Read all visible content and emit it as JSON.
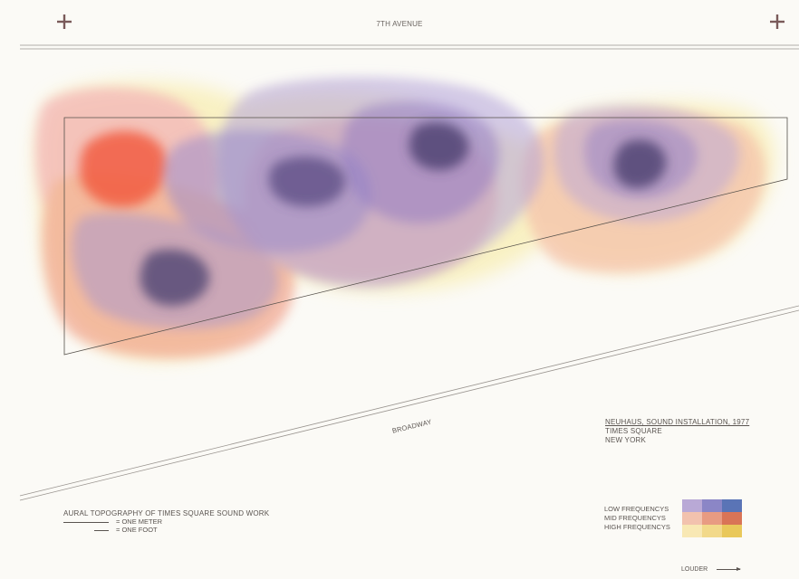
{
  "streets": {
    "top": "7TH AVENUE",
    "diagonal": "BROADWAY"
  },
  "title": {
    "line1": "NEUHAUS, SOUND INSTALLATION, 1977",
    "line2": "TIMES SQUARE",
    "line3": "NEW YORK"
  },
  "caption": "AURAL TOPOGRAPHY OF TIMES SQUARE SOUND WORK",
  "scale": {
    "meter": "= ONE METER",
    "foot": "= ONE FOOT"
  },
  "legend": {
    "rows": [
      {
        "label": "LOW FREQUENCYS",
        "colors": [
          "#b9a9d6",
          "#8b86c6",
          "#5a74b6"
        ]
      },
      {
        "label": "MID FREQUENCYS",
        "colors": [
          "#f2c2ae",
          "#e89b82",
          "#d97456"
        ]
      },
      {
        "label": "HIGH FREQUENCYS",
        "colors": [
          "#f8e8b4",
          "#f2d98a",
          "#e9c85a"
        ]
      }
    ],
    "louder": "LOUDER"
  },
  "colors": {
    "low": "#8f79c4",
    "low_dark": "#4a3f6e",
    "mid": "#ef8f80",
    "mid_hot": "#f2563a",
    "high": "#f7e99a",
    "outline": "#55504a",
    "street_line": "#8a8580",
    "crosshair": "#7a5a5a"
  },
  "icons": [
    "crosshair-icon",
    "crosshair-icon",
    "arrow-right-icon"
  ]
}
